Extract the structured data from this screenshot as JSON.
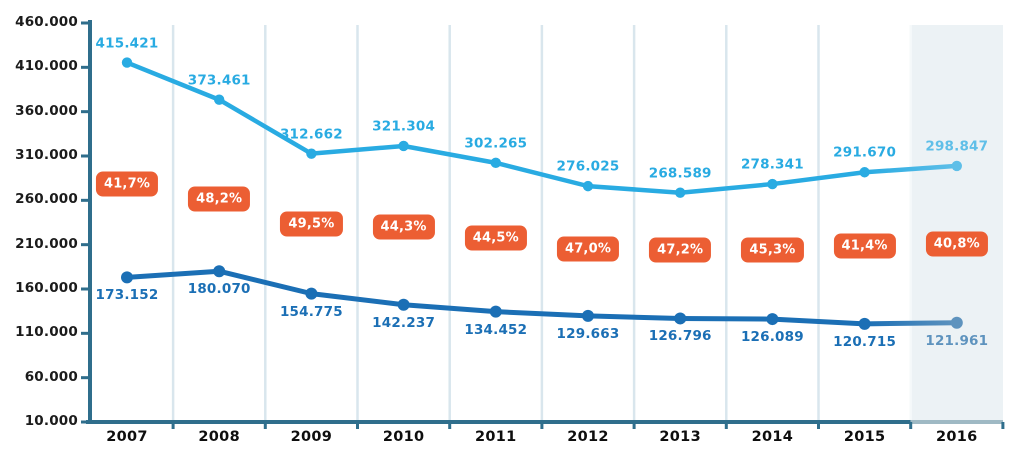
{
  "chart_data": {
    "type": "line",
    "title": "",
    "legend": "none",
    "grid": "vertical-gridlines-between-year-columns",
    "categories": [
      "2007",
      "2008",
      "2009",
      "2010",
      "2011",
      "2012",
      "2013",
      "2014",
      "2015",
      "2016"
    ],
    "series": [
      {
        "name": "upper-series-light-blue",
        "color": "#29ABE2",
        "faded_color": "#5FBFE8",
        "line_width": 4.5,
        "marker_radius": 5.2,
        "values": [
          415421,
          373461,
          312662,
          321304,
          302265,
          276025,
          268589,
          278341,
          291670,
          298847
        ],
        "labels": [
          "415.421",
          "373.461",
          "312.662",
          "321.304",
          "302.265",
          "276.025",
          "268.589",
          "278.341",
          "291.670",
          "298.847"
        ],
        "label_position": "above"
      },
      {
        "name": "lower-series-dark-blue",
        "color": "#1B6FB5",
        "faded_color": "#5E93BE",
        "line_width": 5,
        "marker_radius": 6,
        "values": [
          173152,
          180070,
          154775,
          142237,
          134452,
          129663,
          126796,
          126089,
          120715,
          121961
        ],
        "labels": [
          "173.152",
          "180.070",
          "154.775",
          "142.237",
          "134.452",
          "129.663",
          "126.796",
          "126.089",
          "120.715",
          "121.961"
        ],
        "label_position": "below"
      }
    ],
    "ratio_badges": {
      "labels": [
        "41,7%",
        "48,2%",
        "49,5%",
        "44,3%",
        "44,5%",
        "47,0%",
        "47,2%",
        "45,3%",
        "41,4%",
        "40,8%"
      ],
      "bg_color": "#EC5E33",
      "text_color": "#FFFFFF",
      "y_offsets": [
        14,
        14,
        0,
        2,
        1,
        -2,
        -6,
        -2,
        -2,
        0
      ]
    },
    "yaxis": {
      "min": 10000,
      "max": 460000,
      "step": 50000,
      "tick_labels": [
        "460.000",
        "410.000",
        "360.000",
        "310.000",
        "260.000",
        "210.000",
        "160.000",
        "110.000",
        "60.000",
        "10.000"
      ]
    },
    "highlight_last_column": {
      "category": "2016",
      "fill": "#ECF2F5",
      "edge": "#F5F9FA"
    },
    "colors": {
      "axis": "#2F6E8C",
      "axis_faded": "#9FB9C4",
      "gridline": "#D9E6ED",
      "y_label_text": "#1B1B1B",
      "x_label_text": "#0E0E0E",
      "background": "#FFFFFF"
    }
  }
}
